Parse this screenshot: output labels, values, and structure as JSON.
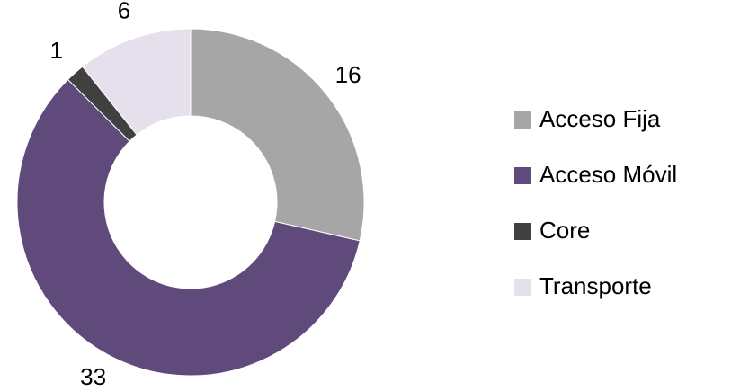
{
  "chart_data": {
    "type": "donut",
    "categories": [
      "Acceso Fija",
      "Acceso Móvil",
      "Core",
      "Transporte"
    ],
    "values": [
      16,
      33,
      1,
      6
    ],
    "colors": [
      "#a6a6a6",
      "#604a7b",
      "#404040",
      "#e6e0ec"
    ],
    "legend": "right"
  }
}
